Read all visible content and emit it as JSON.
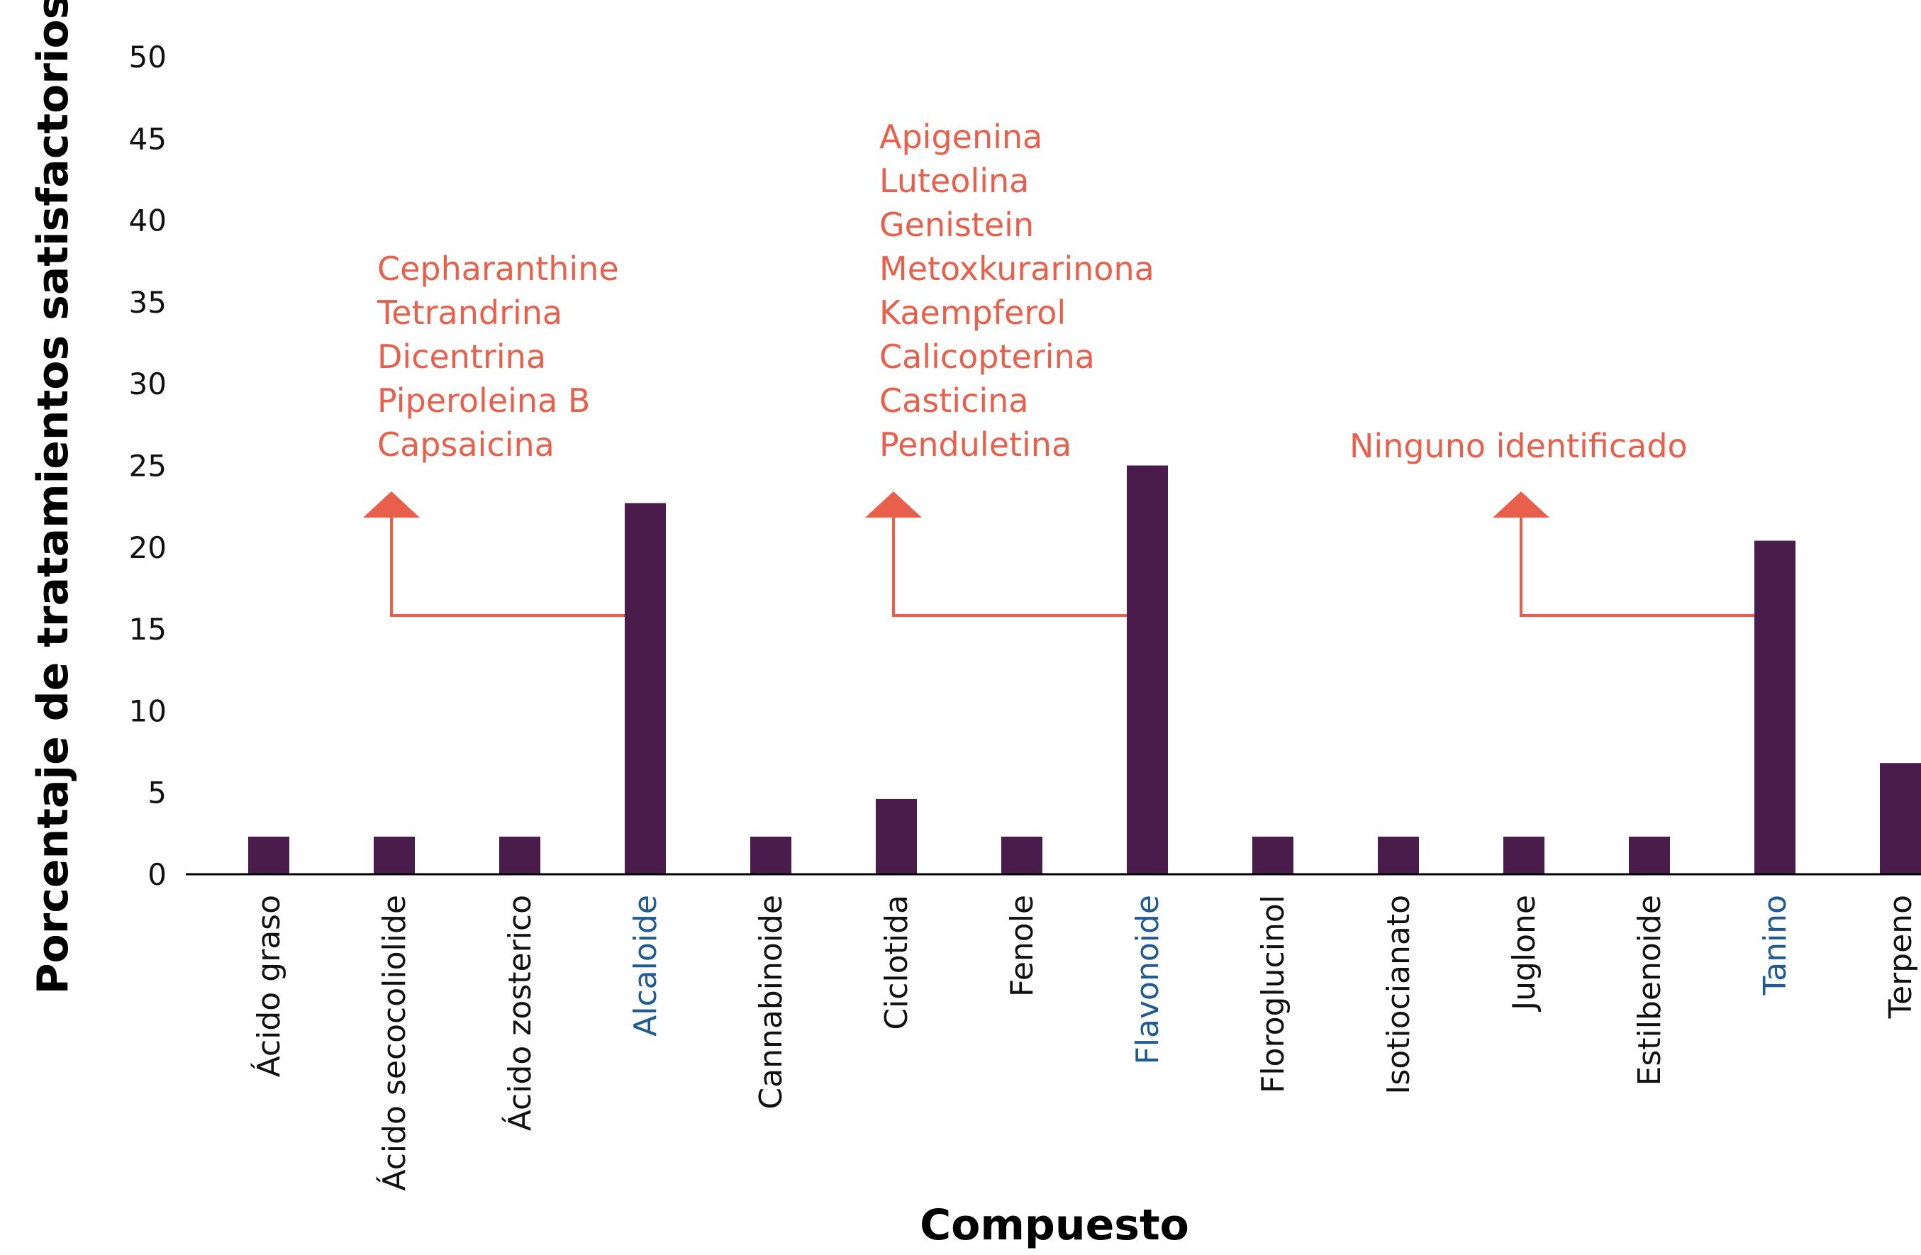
{
  "chart_data": {
    "type": "bar",
    "title": "",
    "xlabel": "Compuesto",
    "ylabel": "Porcentaje de tratamientos satisfactorios",
    "ylim": [
      0,
      50
    ],
    "yticks": [
      0,
      5,
      10,
      15,
      20,
      25,
      30,
      35,
      40,
      45,
      50
    ],
    "grid": false,
    "legend": "none",
    "categories": [
      "Ácido graso",
      "Ácido secocoliolide",
      "Ácido zosterico",
      "Alcaloide",
      "Cannabinoide",
      "Ciclotida",
      "Fenole",
      "Flavonoide",
      "Floroglucinol",
      "Isotiocianato",
      "Juglone",
      "Estilbenoide",
      "Tanino",
      "Terpeno"
    ],
    "values": [
      2.3,
      2.3,
      2.3,
      22.7,
      2.3,
      4.6,
      2.3,
      25.0,
      2.3,
      2.3,
      2.3,
      2.3,
      20.4,
      6.8
    ],
    "highlighted_categories": [
      "Alcaloide",
      "Flavonoide",
      "Tanino"
    ],
    "annotations": [
      {
        "category": "Alcaloide",
        "lines": [
          "Cepharanthine",
          "Tetrandrina",
          "Dicentrina",
          "Piperoleina B",
          "Capsaicina"
        ]
      },
      {
        "category": "Flavonoide",
        "lines": [
          "Apigenina",
          "Luteolina",
          "Genistein",
          "Metoxkurarinona",
          "Kaempferol",
          "Calicopterina",
          "Casticina",
          "Penduletina"
        ]
      },
      {
        "category": "Tanino",
        "lines": [
          "Ninguno identificado"
        ]
      }
    ],
    "colors": {
      "bar": "#4a1c4c",
      "highlight_label": "#1f5a94",
      "annotation": "#e8604c",
      "axis": "#000000"
    }
  }
}
